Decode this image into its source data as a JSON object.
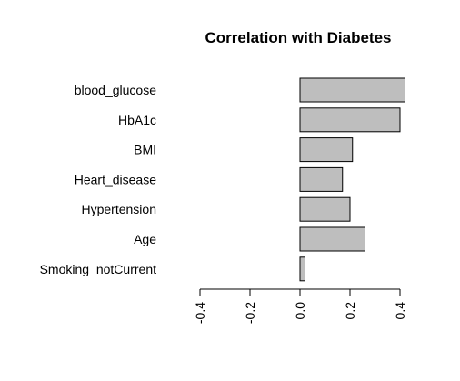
{
  "chart_data": {
    "type": "bar",
    "orientation": "horizontal",
    "title": "Correlation with Diabetes",
    "xlabel": "",
    "ylabel": "",
    "categories": [
      "blood_glucose",
      "HbA1c",
      "BMI",
      "Heart_disease",
      "Hypertension",
      "Age",
      "Smoking_notCurrent"
    ],
    "values": [
      0.42,
      0.4,
      0.21,
      0.17,
      0.2,
      0.26,
      0.02
    ],
    "xlim": [
      -0.4,
      0.4
    ],
    "xticks": [
      -0.4,
      -0.2,
      0.0,
      0.2,
      0.4
    ],
    "xtick_labels": [
      "-0.4",
      "-0.2",
      "0.0",
      "0.2",
      "0.4"
    ],
    "grid": false,
    "legend": "none",
    "bar_color": "#bebebe",
    "bar_border_color": "#000000"
  }
}
